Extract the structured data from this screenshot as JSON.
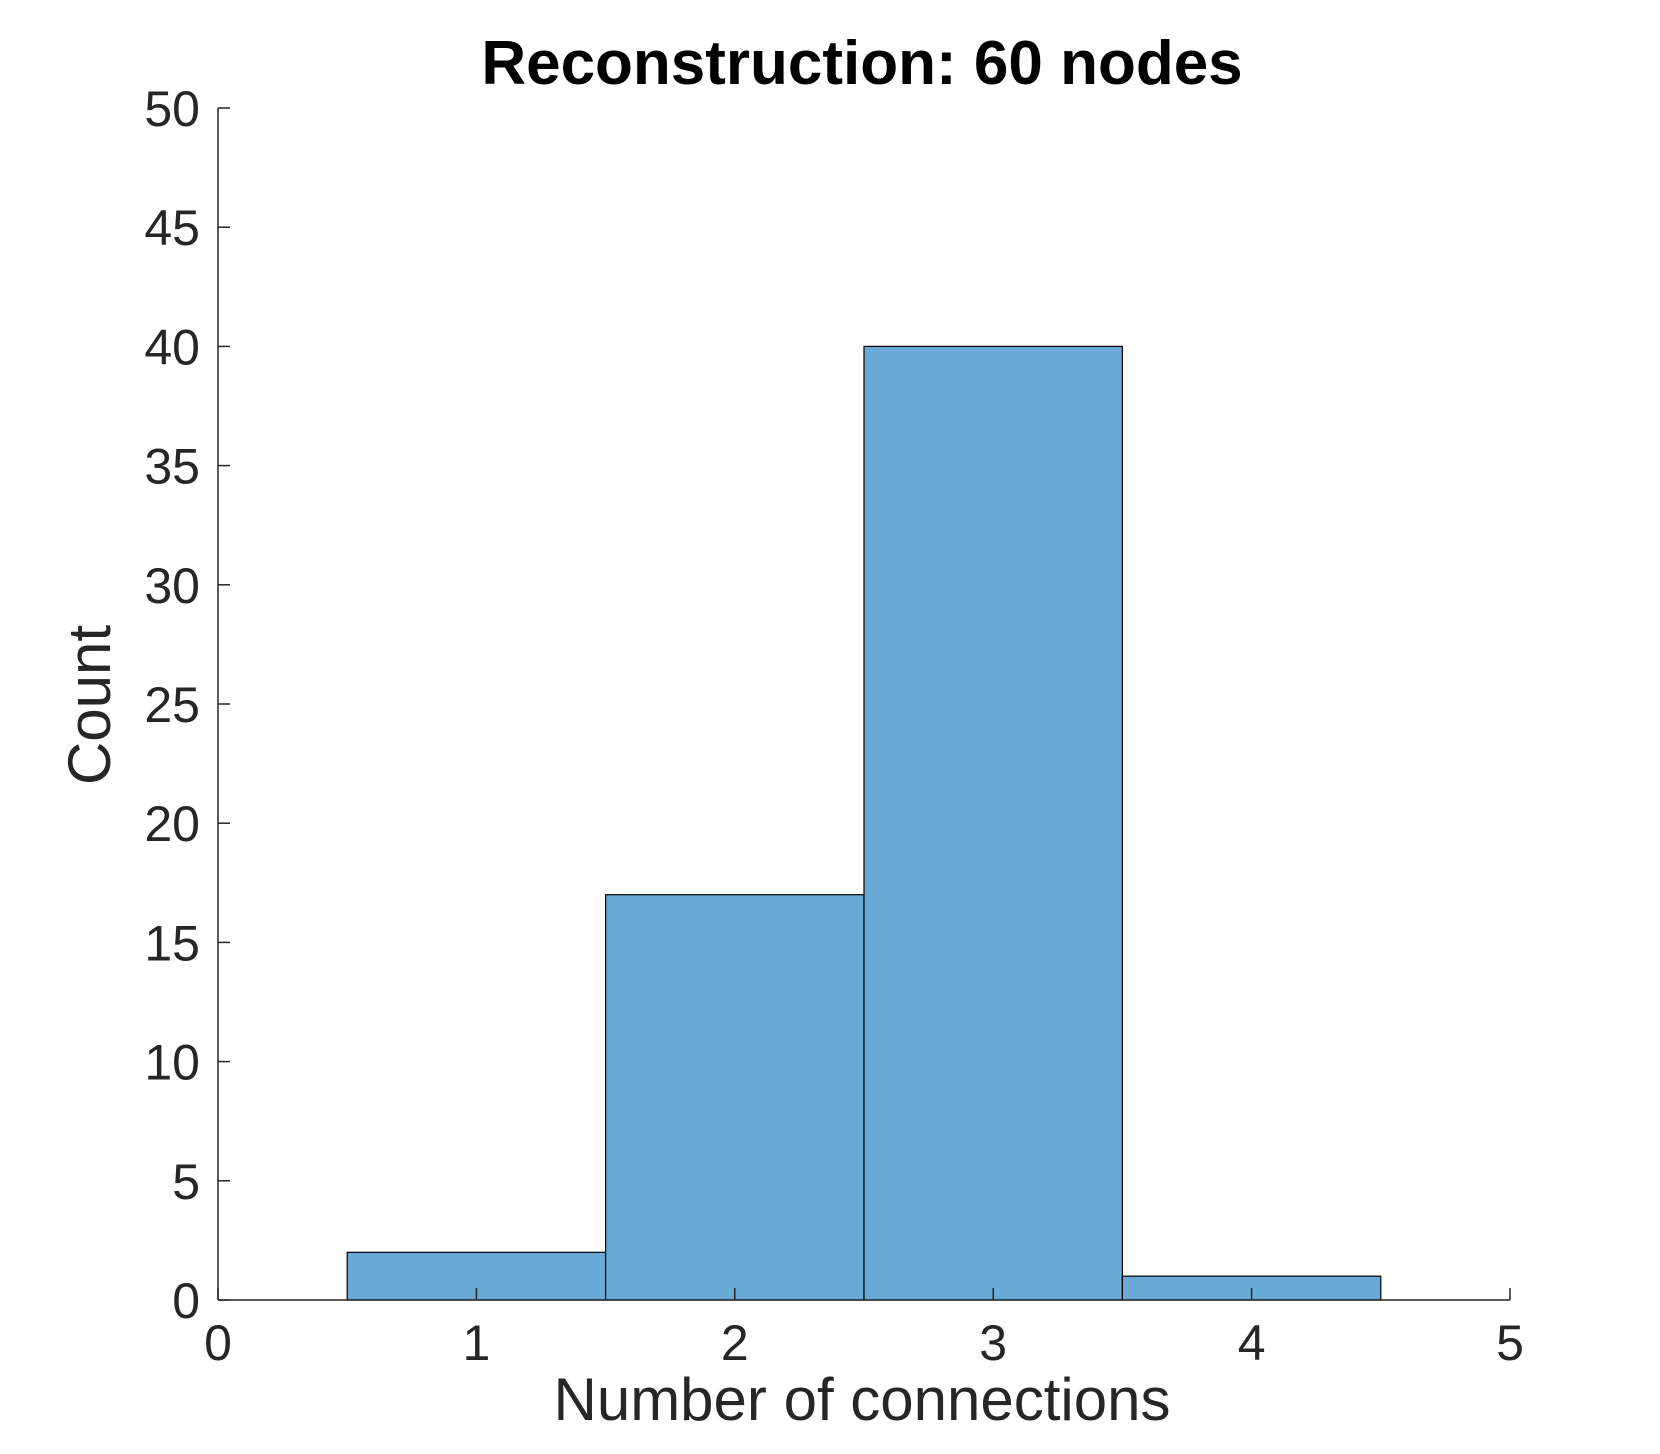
{
  "chart_data": {
    "type": "bar",
    "title": "Reconstruction: 60 nodes",
    "xlabel": "Number of connections",
    "ylabel": "Count",
    "xlim": [
      0,
      5
    ],
    "ylim": [
      0,
      50
    ],
    "x_ticks": [
      "0",
      "1",
      "2",
      "3",
      "4",
      "5"
    ],
    "y_ticks": [
      "0",
      "5",
      "10",
      "15",
      "20",
      "25",
      "30",
      "35",
      "40",
      "45",
      "50"
    ],
    "categories": [
      "1",
      "2",
      "3",
      "4"
    ],
    "values": [
      2,
      17,
      40,
      1
    ],
    "bar_color": "#68a9d6",
    "edge_color": "#000000",
    "grid": false,
    "legend": "none"
  }
}
